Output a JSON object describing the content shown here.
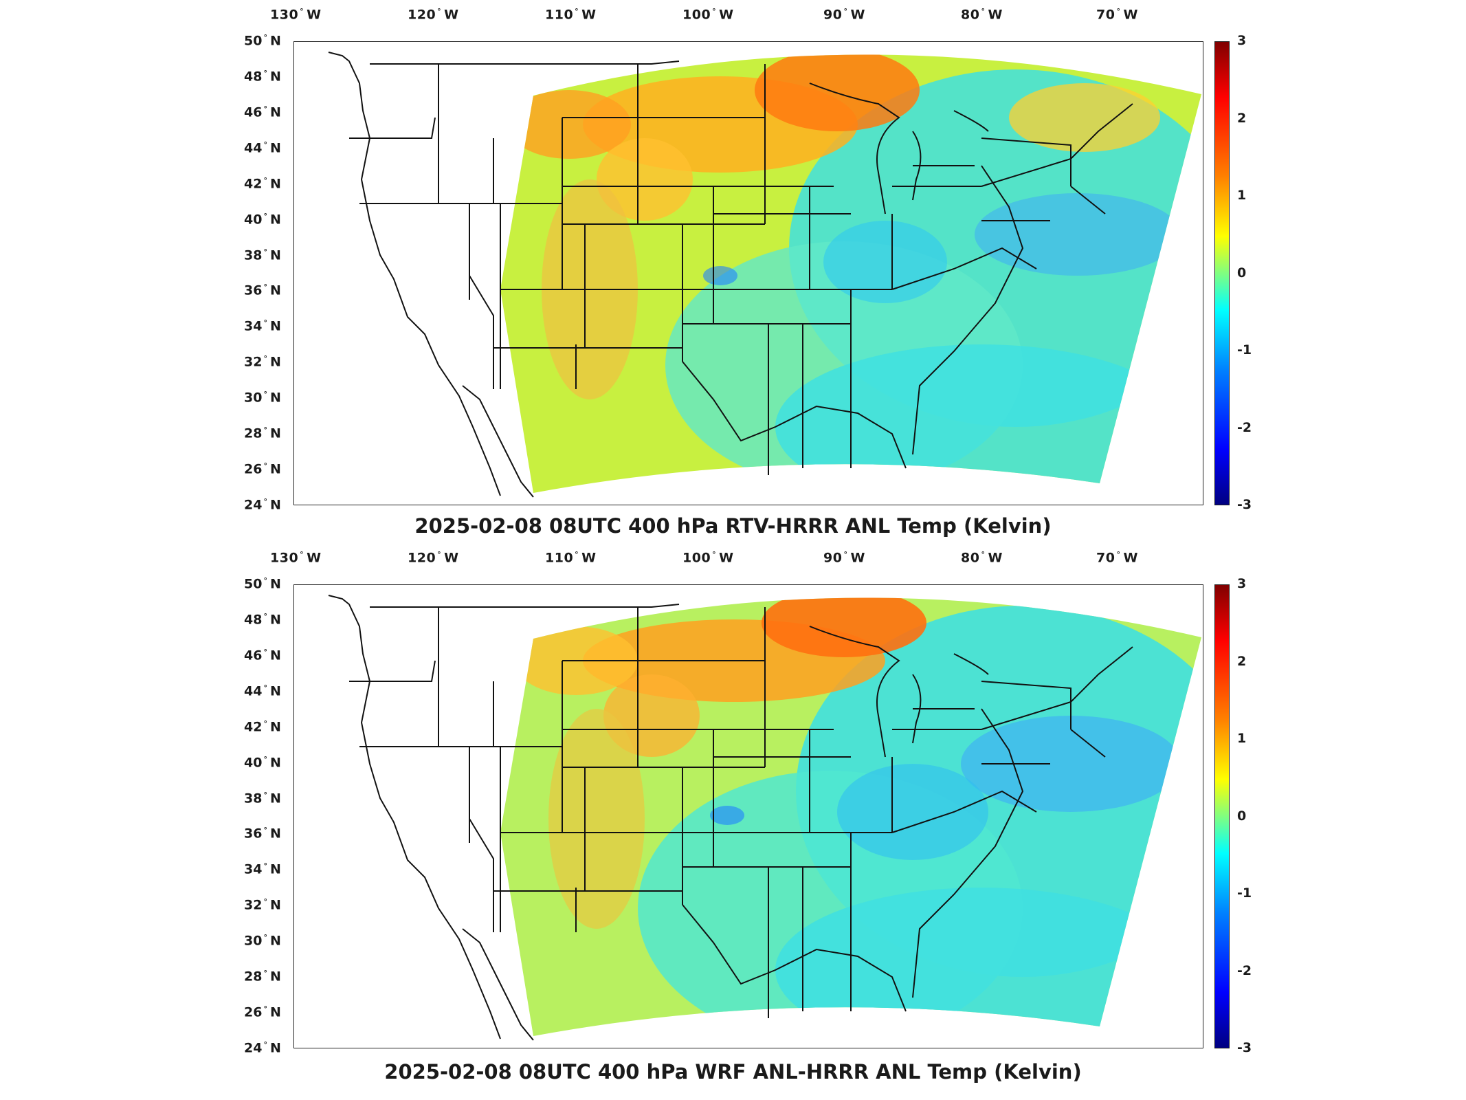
{
  "figure": {
    "panels": [
      {
        "title": "2025-02-08 08UTC 400 hPa RTV-HRRR ANL Temp (Kelvin)",
        "map": "top"
      },
      {
        "title": "2025-02-08 08UTC 400 hPa WRF ANL-HRRR ANL Temp (Kelvin)",
        "map": "bottom"
      }
    ],
    "lon_ticks": [
      {
        "num": "130",
        "dir": "W"
      },
      {
        "num": "120",
        "dir": "W"
      },
      {
        "num": "110",
        "dir": "W"
      },
      {
        "num": "100",
        "dir": "W"
      },
      {
        "num": "90",
        "dir": "W"
      },
      {
        "num": "80",
        "dir": "W"
      },
      {
        "num": "70",
        "dir": "W"
      }
    ],
    "lat_ticks": [
      {
        "num": "50",
        "dir": "N"
      },
      {
        "num": "48",
        "dir": "N"
      },
      {
        "num": "46",
        "dir": "N"
      },
      {
        "num": "44",
        "dir": "N"
      },
      {
        "num": "42",
        "dir": "N"
      },
      {
        "num": "40",
        "dir": "N"
      },
      {
        "num": "38",
        "dir": "N"
      },
      {
        "num": "36",
        "dir": "N"
      },
      {
        "num": "34",
        "dir": "N"
      },
      {
        "num": "32",
        "dir": "N"
      },
      {
        "num": "30",
        "dir": "N"
      },
      {
        "num": "28",
        "dir": "N"
      },
      {
        "num": "26",
        "dir": "N"
      },
      {
        "num": "24",
        "dir": "N"
      }
    ],
    "colorbar": {
      "ticks": [
        "3",
        "2",
        "1",
        "0",
        "-1",
        "-2",
        "-3"
      ],
      "range": [
        -3,
        3
      ],
      "colormap": "jet"
    },
    "colors": {
      "warm": "#ff8000",
      "mild": "#c8f040",
      "cool": "#40e0e0",
      "cold": "#3aa0ff"
    }
  }
}
